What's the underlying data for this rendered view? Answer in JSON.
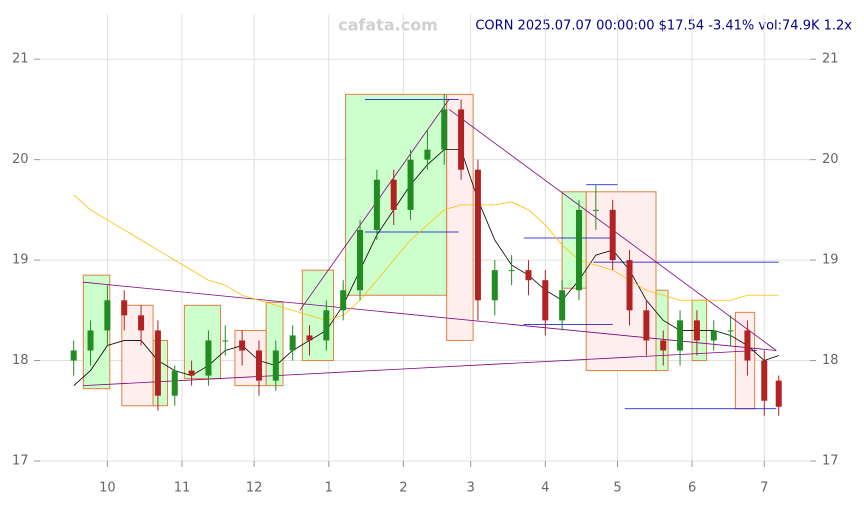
{
  "chart_data": {
    "type": "candlestick",
    "title": "CORN 2025.07.07 00:00:00 $17.54 -3.41% vol:74.9K 1.2x",
    "watermark": "cafata.com",
    "x": [
      16,
      23,
      30,
      37,
      44,
      51,
      58,
      65,
      72,
      79,
      86,
      93,
      100,
      107,
      114,
      121,
      128,
      135,
      142,
      149,
      156,
      163,
      170,
      177,
      184,
      191,
      198,
      205,
      212,
      219,
      226,
      233,
      240,
      247,
      254,
      261,
      268,
      275,
      282,
      289,
      296,
      303,
      309
    ],
    "open": [
      18.0,
      18.1,
      18.3,
      18.6,
      18.45,
      18.3,
      17.65,
      17.9,
      17.85,
      18.2,
      18.2,
      18.1,
      17.8,
      18.1,
      18.25,
      18.2,
      18.5,
      18.7,
      19.3,
      19.8,
      19.5,
      20.0,
      20.1,
      20.5,
      19.9,
      18.6,
      18.9,
      18.9,
      18.8,
      18.4,
      18.7,
      19.5,
      19.5,
      19.0,
      18.5,
      18.2,
      18.1,
      18.4,
      18.2,
      18.3,
      18.3,
      18.0,
      17.8
    ],
    "high": [
      18.2,
      18.4,
      18.75,
      18.7,
      18.55,
      18.4,
      17.95,
      18.0,
      18.3,
      18.35,
      18.3,
      18.2,
      18.2,
      18.35,
      18.35,
      18.6,
      18.8,
      19.4,
      19.9,
      19.9,
      20.1,
      20.3,
      20.65,
      20.6,
      20.0,
      19.0,
      19.05,
      19.0,
      18.9,
      18.8,
      19.6,
      19.75,
      19.6,
      19.1,
      18.6,
      18.3,
      18.5,
      18.5,
      18.4,
      18.45,
      18.4,
      18.1,
      17.85
    ],
    "low": [
      17.85,
      17.95,
      18.15,
      18.3,
      18.15,
      17.5,
      17.55,
      17.75,
      17.75,
      18.05,
      17.95,
      17.65,
      17.7,
      18.0,
      18.05,
      18.1,
      18.4,
      18.6,
      19.2,
      19.35,
      19.4,
      19.9,
      19.95,
      19.8,
      18.4,
      18.45,
      18.75,
      18.65,
      18.25,
      18.3,
      18.6,
      19.3,
      18.9,
      18.35,
      18.05,
      17.95,
      17.95,
      18.05,
      18.1,
      18.15,
      17.85,
      17.45,
      17.45
    ],
    "close": [
      18.1,
      18.3,
      18.6,
      18.45,
      18.3,
      17.65,
      17.9,
      17.85,
      18.2,
      18.2,
      18.1,
      17.8,
      18.1,
      18.25,
      18.2,
      18.5,
      18.7,
      19.3,
      19.8,
      19.5,
      20.0,
      20.1,
      20.5,
      19.9,
      18.6,
      18.9,
      18.9,
      18.8,
      18.4,
      18.7,
      19.5,
      19.5,
      19.0,
      18.5,
      18.2,
      18.1,
      18.4,
      18.2,
      18.3,
      18.3,
      18.0,
      17.6,
      17.54
    ],
    "up_color": "#228b22",
    "down_color": "#b22222",
    "lines": [
      {
        "color": "#000000",
        "values": [
          17.75,
          17.9,
          18.15,
          18.2,
          18.2,
          18.0,
          17.9,
          17.85,
          17.95,
          18.1,
          18.15,
          18.0,
          17.95,
          18.1,
          18.2,
          18.3,
          18.55,
          18.9,
          19.25,
          19.5,
          19.75,
          19.95,
          20.1,
          20.1,
          19.6,
          19.2,
          18.95,
          18.85,
          18.7,
          18.6,
          18.8,
          19.05,
          19.1,
          18.9,
          18.6,
          18.4,
          18.3,
          18.3,
          18.3,
          18.25,
          18.15,
          18.0,
          18.05
        ]
      },
      {
        "color": "#ffc000",
        "values": [
          19.65,
          19.5,
          19.4,
          19.3,
          19.2,
          19.1,
          19.0,
          18.9,
          18.8,
          18.75,
          18.65,
          18.6,
          18.55,
          18.5,
          18.45,
          18.4,
          18.45,
          18.6,
          18.8,
          19.0,
          19.2,
          19.35,
          19.5,
          19.55,
          19.55,
          19.55,
          19.58,
          19.5,
          19.35,
          19.15,
          19.0,
          18.95,
          18.9,
          18.8,
          18.7,
          18.65,
          18.6,
          18.6,
          18.6,
          18.6,
          18.65,
          18.65,
          18.65
        ]
      }
    ],
    "boxes": [
      {
        "x0": 20,
        "x1": 31,
        "low": 17.72,
        "high": 18.85,
        "color": "#ccffcc"
      },
      {
        "x0": 36,
        "x1": 49,
        "low": 17.55,
        "high": 18.55,
        "color": "#ffeeee"
      },
      {
        "x0": 49,
        "x1": 55,
        "low": 17.55,
        "high": 18.2,
        "color": "#ccffcc"
      },
      {
        "x0": 62,
        "x1": 77,
        "low": 17.82,
        "high": 18.55,
        "color": "#ccffcc"
      },
      {
        "x0": 83,
        "x1": 96,
        "low": 17.75,
        "high": 18.3,
        "color": "#ffeeee"
      },
      {
        "x0": 96,
        "x1": 103,
        "low": 17.75,
        "high": 18.58,
        "color": "#ccffcc"
      },
      {
        "x0": 111,
        "x1": 124,
        "low": 18.0,
        "high": 18.9,
        "color": "#ccffcc"
      },
      {
        "x0": 129,
        "x1": 171,
        "low": 18.65,
        "high": 20.65,
        "color": "#ccffcc"
      },
      {
        "x0": 171,
        "x1": 182,
        "low": 18.2,
        "high": 20.65,
        "color": "#ffeeee"
      },
      {
        "x0": 219,
        "x1": 229,
        "low": 18.72,
        "high": 19.68,
        "color": "#ccffcc"
      },
      {
        "x0": 229,
        "x1": 258,
        "low": 17.9,
        "high": 19.68,
        "color": "#ffeeee"
      },
      {
        "x0": 258,
        "x1": 263,
        "low": 17.9,
        "high": 18.7,
        "color": "#ccffcc"
      },
      {
        "x0": 273,
        "x1": 279,
        "low": 18.0,
        "high": 18.6,
        "color": "#ccffcc"
      },
      {
        "x0": 291,
        "x1": 299,
        "low": 17.52,
        "high": 18.48,
        "color": "#ffeeee"
      }
    ],
    "box_edge": "#e08040",
    "trendlines": [
      {
        "x0": 20,
        "y0": 18.78,
        "x1": 308,
        "y1": 18.1
      },
      {
        "x0": 20,
        "y0": 17.75,
        "x1": 300,
        "y1": 18.1
      },
      {
        "x0": 110,
        "y0": 18.5,
        "x1": 172,
        "y1": 20.6
      },
      {
        "x0": 172,
        "y0": 20.5,
        "x1": 308,
        "y1": 18.1
      }
    ],
    "trend_color": "#800080",
    "levels": [
      {
        "x0": 137,
        "x1": 176,
        "y": 20.6
      },
      {
        "x0": 137,
        "x1": 176,
        "y": 19.28
      },
      {
        "x0": 203,
        "x1": 240,
        "y": 19.22
      },
      {
        "x0": 203,
        "x1": 240,
        "y": 18.36
      },
      {
        "x0": 229,
        "x1": 242,
        "y": 19.75
      },
      {
        "x0": 232,
        "x1": 309,
        "y": 18.98
      },
      {
        "x0": 245,
        "x1": 308,
        "y": 17.52
      }
    ],
    "level_color": "#0000cd",
    "xlim": [
      2,
      322
    ],
    "ylim": [
      17,
      21.45
    ],
    "xticks": [
      {
        "value": 30,
        "label": "10"
      },
      {
        "value": 61,
        "label": "11"
      },
      {
        "value": 91,
        "label": "12"
      },
      {
        "value": 122,
        "label": "1"
      },
      {
        "value": 153,
        "label": "2"
      },
      {
        "value": 181,
        "label": "3"
      },
      {
        "value": 212,
        "label": "4"
      },
      {
        "value": 242,
        "label": "5"
      },
      {
        "value": 273,
        "label": "6"
      },
      {
        "value": 303,
        "label": "7"
      }
    ],
    "yticks": [
      17,
      18,
      19,
      20,
      21
    ],
    "grid": true
  }
}
